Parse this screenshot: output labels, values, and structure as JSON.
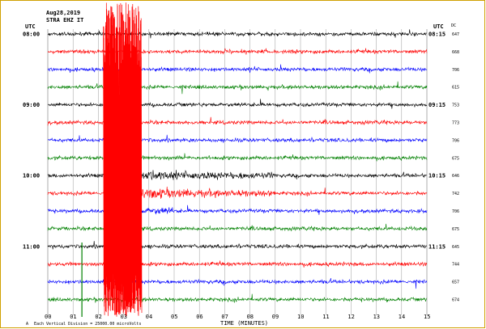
{
  "header": {
    "date": "Aug28,2019",
    "station": "STRA EHZ IT",
    "utc_left": "UTC",
    "utc_right": "UTC",
    "dc_label": "DC"
  },
  "footer": {
    "division_note": "Each Vertical Division = 25000.00 microVolts",
    "corner_mark": "A"
  },
  "chart_data": {
    "type": "line",
    "title": "",
    "xlabel": "TIME (MINUTES)",
    "ylabel": "",
    "xlim": [
      0,
      15
    ],
    "x_ticks": [
      "00",
      "01",
      "02",
      "03",
      "04",
      "05",
      "06",
      "07",
      "08",
      "09",
      "10",
      "11",
      "12",
      "13",
      "14",
      "15"
    ],
    "left_hour_labels": [
      {
        "row": 0,
        "label": "08:00"
      },
      {
        "row": 4,
        "label": "09:00"
      },
      {
        "row": 8,
        "label": "10:00"
      },
      {
        "row": 12,
        "label": "11:00"
      }
    ],
    "right_time_labels": [
      {
        "row": 0,
        "label": "08:15"
      },
      {
        "row": 4,
        "label": "09:15"
      },
      {
        "row": 8,
        "label": "10:15"
      },
      {
        "row": 12,
        "label": "11:15"
      }
    ],
    "dc_values": [
      "647",
      "668",
      "706",
      "615",
      "753",
      "773",
      "706",
      "675",
      "646",
      "742",
      "706",
      "675",
      "645",
      "744",
      "657",
      "674"
    ],
    "trace_colors": [
      "#000000",
      "#ff0000",
      "#0000ff",
      "#008000"
    ],
    "event": {
      "start_minute": 2.2,
      "end_minute": 3.7,
      "rows_affected": [
        0,
        13
      ],
      "color": "#ff0000"
    },
    "marker": {
      "minute": 1.35,
      "color": "#008000"
    }
  }
}
